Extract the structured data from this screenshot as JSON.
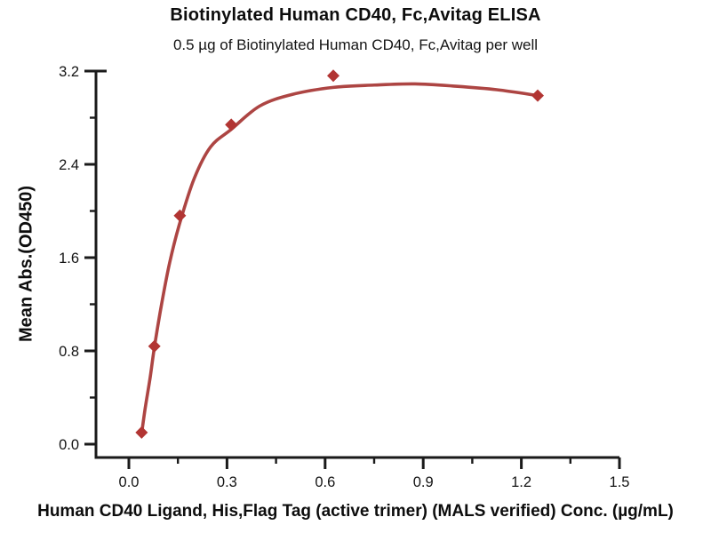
{
  "title": "Biotinylated Human CD40, Fc,Avitag ELISA",
  "subtitle": "0.5 µg of Biotinylated Human CD40, Fc,Avitag per well",
  "chart_data": {
    "type": "scatter",
    "title": "Biotinylated Human CD40, Fc,Avitag ELISA",
    "subtitle": "0.5 µg of Biotinylated Human CD40, Fc,Avitag per well",
    "xlabel": "Human CD40 Ligand, His,Flag Tag (active trimer) (MALS verified) Conc. (µg/mL)",
    "ylabel": "Mean Abs.(OD450)",
    "axis_color": "#1a1a1a",
    "grid": "off",
    "legend": "none",
    "x_axis": {
      "min": -0.1,
      "max": 1.53,
      "major_ticks": [
        {
          "value": 0.0,
          "label": "0.0"
        },
        {
          "value": 0.3,
          "label": "0.3"
        },
        {
          "value": 0.6,
          "label": "0.6"
        },
        {
          "value": 0.9,
          "label": "0.9"
        },
        {
          "value": 1.2,
          "label": "1.2"
        },
        {
          "value": 1.5,
          "label": "1.5"
        }
      ],
      "minor_tick_values": [
        0.15,
        0.45,
        0.75,
        1.05,
        1.35
      ]
    },
    "y_axis": {
      "min": -0.11,
      "max": 3.2,
      "major_ticks": [
        {
          "value": 0.0,
          "label": "0.0"
        },
        {
          "value": 0.8,
          "label": "0.8"
        },
        {
          "value": 1.6,
          "label": "1.6"
        },
        {
          "value": 2.4,
          "label": "2.4"
        },
        {
          "value": 3.2,
          "label": "3.2"
        }
      ],
      "minor_tick_values": [
        0.4,
        1.2,
        2.0,
        2.8
      ]
    },
    "series": [
      {
        "marker": "diamond",
        "color": "#b23533",
        "points": [
          [
            0.039,
            0.1
          ],
          [
            0.078,
            0.84
          ],
          [
            0.156,
            1.96
          ],
          [
            0.313,
            2.74
          ],
          [
            0.625,
            3.16
          ],
          [
            1.25,
            2.99
          ]
        ]
      }
    ],
    "fit_curve": {
      "color": "#ad4543",
      "points": [
        [
          0.039,
          0.09
        ],
        [
          0.05,
          0.31
        ],
        [
          0.065,
          0.57
        ],
        [
          0.078,
          0.83
        ],
        [
          0.1,
          1.2
        ],
        [
          0.125,
          1.56
        ],
        [
          0.156,
          1.9
        ],
        [
          0.2,
          2.28
        ],
        [
          0.25,
          2.55
        ],
        [
          0.313,
          2.7
        ],
        [
          0.4,
          2.9
        ],
        [
          0.5,
          3.0
        ],
        [
          0.625,
          3.06
        ],
        [
          0.75,
          3.08
        ],
        [
          0.875,
          3.09
        ],
        [
          1.0,
          3.07
        ],
        [
          1.125,
          3.04
        ],
        [
          1.25,
          2.99
        ]
      ]
    }
  }
}
